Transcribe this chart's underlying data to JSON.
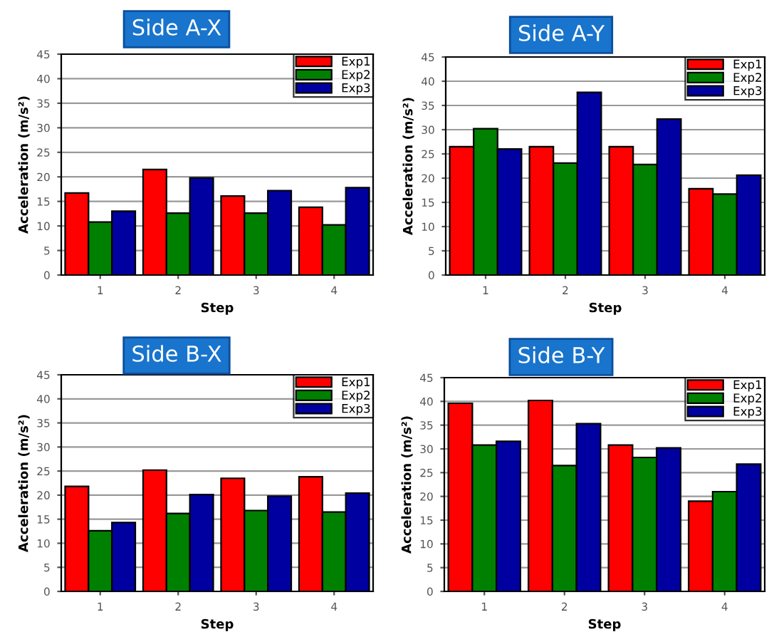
{
  "chart_data": [
    {
      "type": "bar",
      "title": "Side A-X",
      "xlabel": "Step",
      "ylabel": "Acceleration (m/s²)",
      "categories": [
        "1",
        "2",
        "3",
        "4"
      ],
      "ylim": [
        0,
        45
      ],
      "yticks": [
        0,
        5,
        10,
        15,
        20,
        25,
        30,
        35,
        40,
        45
      ],
      "grid": "y",
      "legend": "top right",
      "series": [
        {
          "name": "Exp1",
          "color": "#ff0000",
          "values": [
            16.7,
            21.5,
            16.1,
            13.8
          ]
        },
        {
          "name": "Exp2",
          "color": "#008000",
          "values": [
            10.8,
            12.6,
            12.6,
            10.2
          ]
        },
        {
          "name": "Exp3",
          "color": "#0000a0",
          "values": [
            13.0,
            19.8,
            17.2,
            17.8
          ]
        }
      ]
    },
    {
      "type": "bar",
      "title": "Side A-Y",
      "xlabel": "Step",
      "ylabel": "Acceleration (m/s²)",
      "categories": [
        "1",
        "2",
        "3",
        "4"
      ],
      "ylim": [
        0,
        45
      ],
      "yticks": [
        0,
        5,
        10,
        15,
        20,
        25,
        30,
        35,
        40,
        45
      ],
      "grid": "y",
      "legend": "top right",
      "series": [
        {
          "name": "Exp1",
          "color": "#ff0000",
          "values": [
            26.5,
            26.5,
            26.5,
            17.8
          ]
        },
        {
          "name": "Exp2",
          "color": "#008000",
          "values": [
            30.2,
            23.1,
            22.8,
            16.7
          ]
        },
        {
          "name": "Exp3",
          "color": "#0000a0",
          "values": [
            26.0,
            37.7,
            32.2,
            20.6
          ]
        }
      ]
    },
    {
      "type": "bar",
      "title": "Side B-X",
      "xlabel": "Step",
      "ylabel": "Acceleration (m/s²)",
      "categories": [
        "1",
        "2",
        "3",
        "4"
      ],
      "ylim": [
        0,
        45
      ],
      "yticks": [
        0,
        5,
        10,
        15,
        20,
        25,
        30,
        35,
        40,
        45
      ],
      "grid": "y",
      "legend": "top right",
      "series": [
        {
          "name": "Exp1",
          "color": "#ff0000",
          "values": [
            21.8,
            25.2,
            23.5,
            23.8
          ]
        },
        {
          "name": "Exp2",
          "color": "#008000",
          "values": [
            12.6,
            16.2,
            16.8,
            16.5
          ]
        },
        {
          "name": "Exp3",
          "color": "#0000a0",
          "values": [
            14.3,
            20.1,
            19.8,
            20.4
          ]
        }
      ]
    },
    {
      "type": "bar",
      "title": "Side B-Y",
      "xlabel": "Step",
      "ylabel": "Acceleration (m/s²)",
      "categories": [
        "1",
        "2",
        "3",
        "4"
      ],
      "ylim": [
        0,
        45
      ],
      "yticks": [
        0,
        5,
        10,
        15,
        20,
        25,
        30,
        35,
        40,
        45
      ],
      "grid": "y",
      "legend": "top right",
      "series": [
        {
          "name": "Exp1",
          "color": "#ff0000",
          "values": [
            39.6,
            40.2,
            30.8,
            19.0
          ]
        },
        {
          "name": "Exp2",
          "color": "#008000",
          "values": [
            30.8,
            26.5,
            28.2,
            21.0
          ]
        },
        {
          "name": "Exp3",
          "color": "#0000a0",
          "values": [
            31.6,
            35.3,
            30.2,
            26.8
          ]
        }
      ]
    }
  ]
}
